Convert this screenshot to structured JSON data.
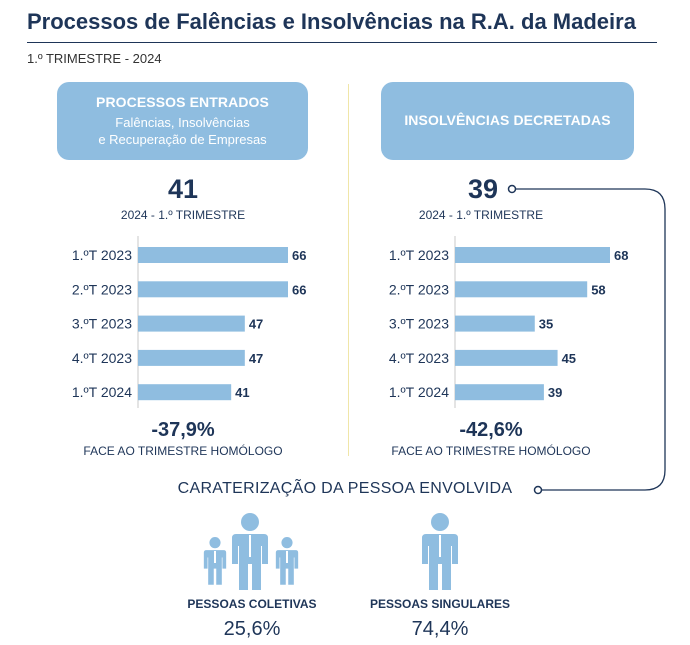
{
  "header": {
    "title": "Processos de Falências e Insolvências na R.A. da Madeira",
    "subtitle": "1.º TRIMESTRE - 2024"
  },
  "colors": {
    "accent": "#8fbde0",
    "text": "#1e3558",
    "divider": "#f0e6a8"
  },
  "left_panel": {
    "heading": "PROCESSOS ENTRADOS",
    "subheading_line1": "Falências, Insolvências",
    "subheading_line2": "e Recuperação de Empresas",
    "big_number": "41",
    "period_label": "2024 - 1.º TRIMESTRE",
    "change_value": "-37,9%",
    "change_label": "FACE AO TRIMESTRE HOMÓLOGO"
  },
  "right_panel": {
    "heading": "INSOLVÊNCIAS DECRETADAS",
    "big_number": "39",
    "period_label": "2024 - 1.º TRIMESTRE",
    "change_value": "-42,6%",
    "change_label": "FACE AO TRIMESTRE HOMÓLOGO"
  },
  "chart_data": [
    {
      "type": "bar",
      "orientation": "horizontal",
      "categories": [
        "1.ºT 2023",
        "2.ºT 2023",
        "3.ºT 2023",
        "4.ºT 2023",
        "1.ºT 2024"
      ],
      "values": [
        66,
        66,
        47,
        47,
        41
      ],
      "title": "PROCESSOS ENTRADOS",
      "color": "#8fbde0"
    },
    {
      "type": "bar",
      "orientation": "horizontal",
      "categories": [
        "1.ºT 2023",
        "2.ºT 2023",
        "3.ºT 2023",
        "4.ºT 2023",
        "1.ºT 2024"
      ],
      "values": [
        68,
        58,
        35,
        45,
        39
      ],
      "title": "INSOLVÊNCIAS DECRETADAS",
      "color": "#8fbde0"
    }
  ],
  "caracterizacao": {
    "title": "CARATERIZAÇÃO DA PESSOA ENVOLVIDA",
    "groups": [
      {
        "label": "PESSOAS COLETIVAS",
        "value": "25,6%",
        "icon": "group-people-icon"
      },
      {
        "label": "PESSOAS SINGULARES",
        "value": "74,4%",
        "icon": "person-icon"
      }
    ]
  }
}
